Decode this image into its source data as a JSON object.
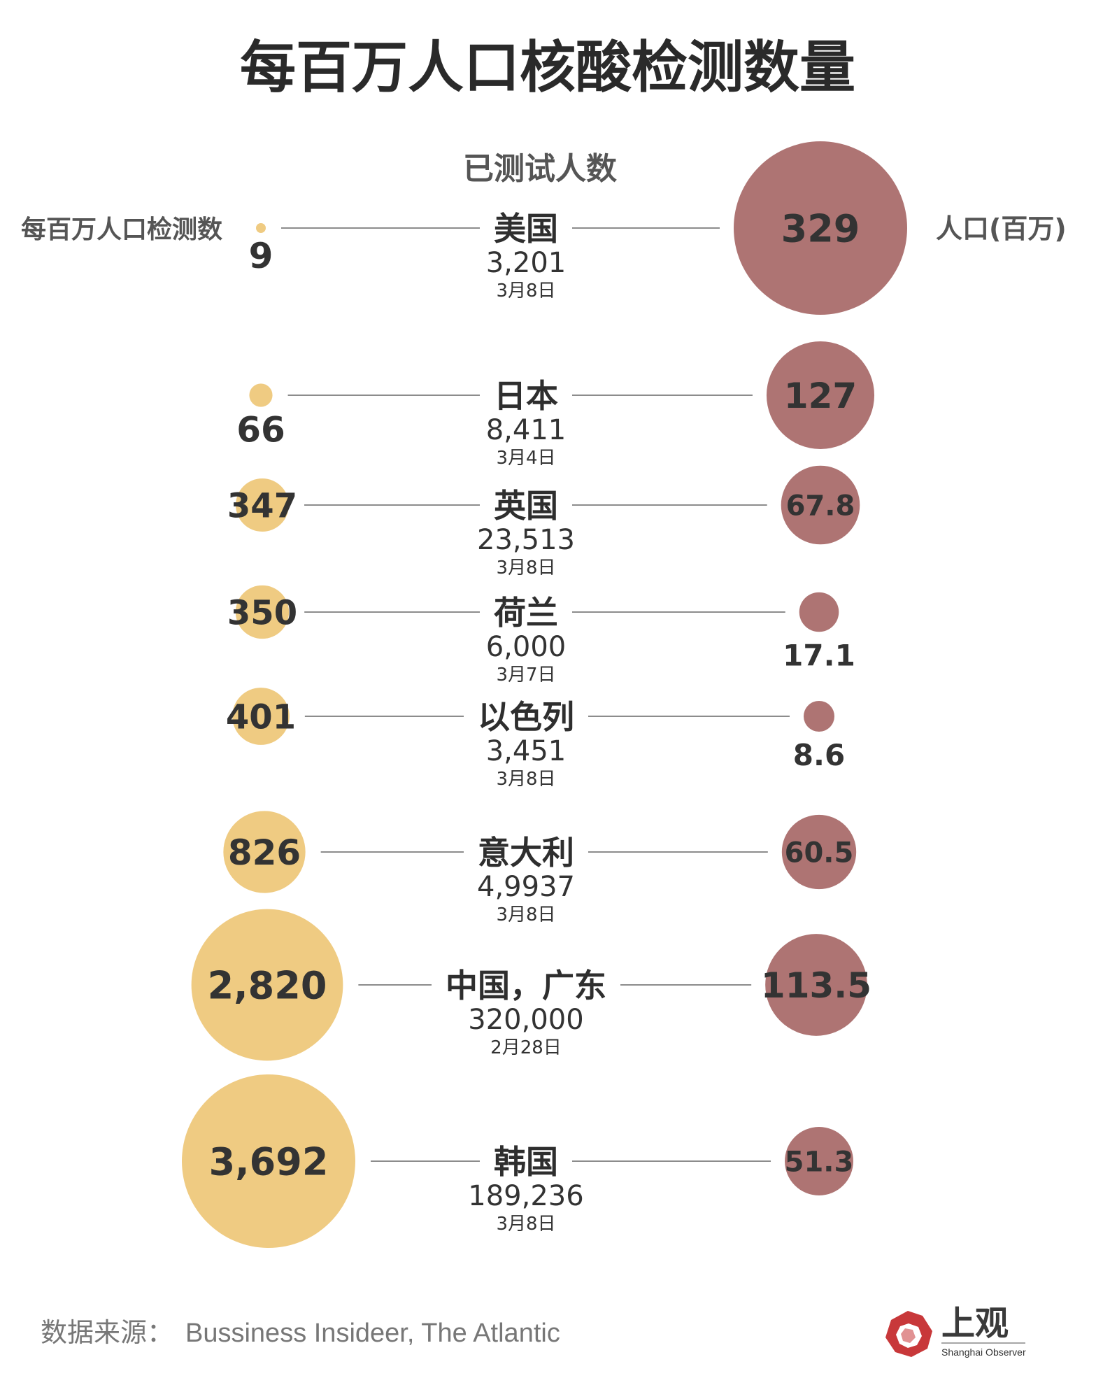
{
  "title": "每百万人口核酸检测数量",
  "headers": {
    "left": "每百万人口检测数",
    "center": "已测试人数",
    "right": "人口(百万)"
  },
  "source_label": "数据来源：",
  "source_text": "Bussiness Insideer, The Atlantic",
  "logo": {
    "text": "上观",
    "subtext": "Shanghai Observer"
  },
  "colors": {
    "tests_per_million": "#EFCB82",
    "population": "#AE7473",
    "line": "#666666",
    "logo_red": "#C8383A"
  },
  "chart_data": {
    "type": "bubble",
    "title": "每百万人口核酸检测数量",
    "series": [
      {
        "name": "每百万人口检测数",
        "values": [
          9,
          66,
          347,
          350,
          401,
          826,
          2820,
          3692
        ],
        "labels": [
          "9",
          "66",
          "347",
          "350",
          "401",
          "826",
          "2,820",
          "3,692"
        ]
      },
      {
        "name": "人口(百万)",
        "values": [
          329,
          127,
          67.8,
          17.1,
          8.6,
          60.5,
          113.5,
          51.3
        ],
        "labels": [
          "329",
          "127",
          "67.8",
          "17.1",
          "8.6",
          "60.5",
          "113.5",
          "51.3"
        ]
      }
    ],
    "rows": [
      {
        "country": "美国",
        "tested": "3,201",
        "date": "3月8日",
        "per_million": 9,
        "per_million_label": "9",
        "population": 329,
        "population_label": "329"
      },
      {
        "country": "日本",
        "tested": "8,411",
        "date": "3月4日",
        "per_million": 66,
        "per_million_label": "66",
        "population": 127,
        "population_label": "127"
      },
      {
        "country": "英国",
        "tested": "23,513",
        "date": "3月8日",
        "per_million": 347,
        "per_million_label": "347",
        "population": 67.8,
        "population_label": "67.8"
      },
      {
        "country": "荷兰",
        "tested": "6,000",
        "date": "3月7日",
        "per_million": 350,
        "per_million_label": "350",
        "population": 17.1,
        "population_label": "17.1"
      },
      {
        "country": "以色列",
        "tested": "3,451",
        "date": "3月8日",
        "per_million": 401,
        "per_million_label": "401",
        "population": 8.6,
        "population_label": "8.6"
      },
      {
        "country": "意大利",
        "tested": "4,9937",
        "date": "3月8日",
        "per_million": 826,
        "per_million_label": "826",
        "population": 60.5,
        "population_label": "60.5"
      },
      {
        "country": "中国，广东",
        "tested": "320,000",
        "date": "2月28日",
        "per_million": 2820,
        "per_million_label": "2,820",
        "population": 113.5,
        "population_label": "113.5"
      },
      {
        "country": "韩国",
        "tested": "189,236",
        "date": "3月8日",
        "per_million": 3692,
        "per_million_label": "3,692",
        "population": 51.3,
        "population_label": "51.3"
      }
    ]
  }
}
